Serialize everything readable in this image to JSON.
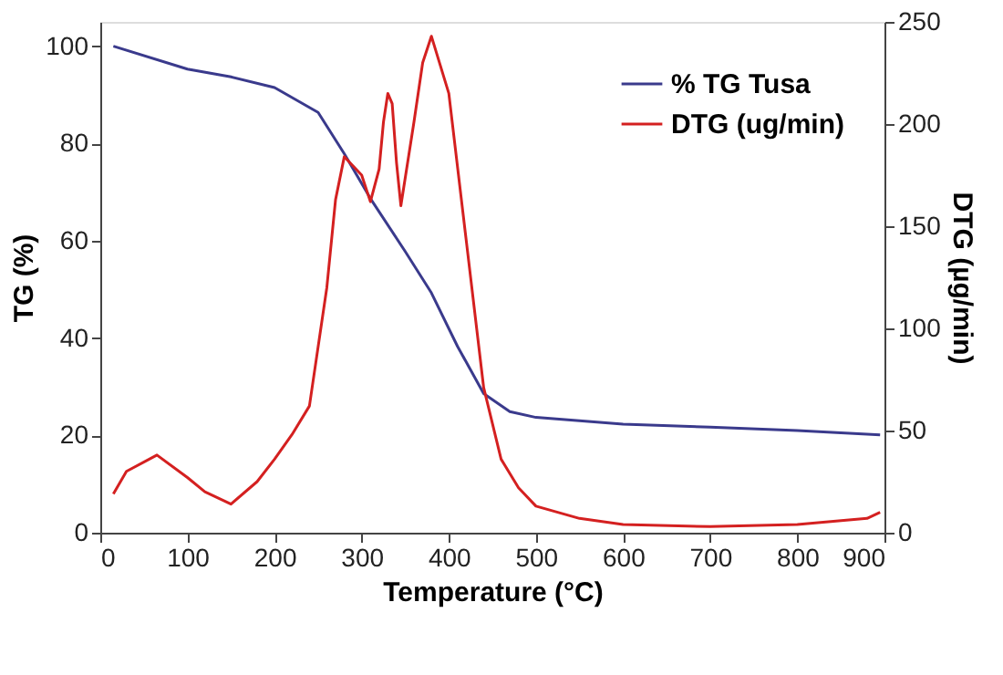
{
  "chart_data": {
    "type": "line",
    "xlabel": "Temperature (°C)",
    "ylabel": "TG (%)",
    "y2label": "DTG (µg/min)",
    "xlim": [
      0,
      900
    ],
    "xticks": [
      0,
      100,
      200,
      300,
      400,
      500,
      600,
      700,
      800,
      900
    ],
    "ylim": [
      0,
      105
    ],
    "yticks": [
      0,
      20,
      40,
      60,
      80,
      100
    ],
    "y2lim": [
      0,
      250
    ],
    "y2ticks": [
      0,
      50,
      100,
      150,
      200,
      250
    ],
    "grid": false,
    "legend": "top right",
    "marker": "none",
    "line_style": "solid",
    "series": [
      {
        "name": "% TG Tusa",
        "color": "#3a3a8c",
        "x": [
          15,
          100,
          150,
          200,
          250,
          280,
          310,
          350,
          380,
          410,
          440,
          470,
          500,
          600,
          700,
          800,
          895
        ],
        "values": [
          100,
          95.3,
          93.7,
          91.5,
          86.4,
          77.9,
          68.7,
          57.8,
          49.3,
          38.3,
          28.6,
          24.9,
          23.7,
          22.3,
          21.7,
          21,
          20.1
        ]
      },
      {
        "name": "DTG (ug/min)",
        "color": "#d42020",
        "axis": "y2",
        "x": [
          15,
          30,
          65,
          100,
          120,
          150,
          180,
          200,
          220,
          240,
          260,
          270,
          280,
          300,
          310,
          320,
          325,
          330,
          335,
          340,
          345,
          360,
          370,
          380,
          400,
          420,
          440,
          460,
          480,
          500,
          550,
          600,
          700,
          800,
          880,
          895
        ],
        "values": [
          19,
          30,
          38,
          27,
          20,
          14,
          25,
          36,
          48,
          62,
          120,
          163,
          184,
          175,
          162,
          178,
          201,
          215,
          210,
          181,
          160,
          201,
          230,
          243,
          215,
          143,
          71,
          36,
          22,
          13,
          7,
          4,
          3,
          4,
          7,
          10
        ]
      }
    ]
  }
}
